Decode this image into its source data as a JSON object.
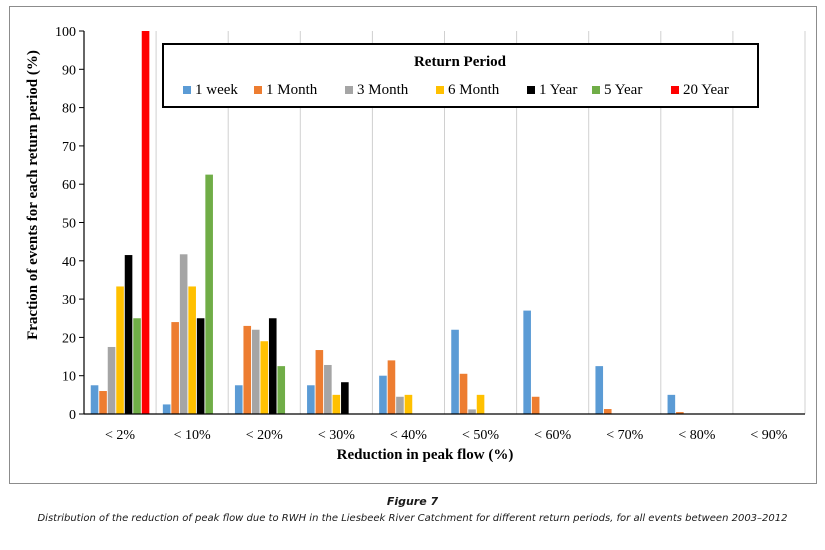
{
  "figure": {
    "label": "Figure 7",
    "caption": "Distribution of the reduction of peak flow due to RWH in the Liesbeek River Catchment for different return periods, for all events between 2003–2012"
  },
  "chart_data": {
    "type": "bar",
    "title": "",
    "xlabel": "Reduction in peak flow (%)",
    "ylabel": "Fraction of events for each return period (%)",
    "ylim": [
      0,
      100
    ],
    "yticks": [
      0,
      10,
      20,
      30,
      40,
      50,
      60,
      70,
      80,
      90,
      100
    ],
    "grid": "vertical",
    "legend_title": "Return Period",
    "legend_position": "top-right",
    "categories": [
      "< 2%",
      "< 10%",
      "< 20%",
      "< 30%",
      "< 40%",
      "< 50%",
      "< 60%",
      "< 70%",
      "< 80%",
      "< 90%"
    ],
    "series": [
      {
        "name": "1 week",
        "color": "#5b9bd5",
        "values": [
          7.5,
          2.5,
          7.5,
          7.5,
          10,
          22,
          27,
          12.5,
          5,
          0
        ]
      },
      {
        "name": "1 Month",
        "color": "#ed7d31",
        "values": [
          6,
          24,
          23,
          16.7,
          14,
          10.5,
          4.5,
          1.3,
          0.5,
          0
        ]
      },
      {
        "name": "3 Month",
        "color": "#a5a5a5",
        "values": [
          17.5,
          41.7,
          22,
          12.8,
          4.5,
          1.2,
          0,
          0,
          0,
          0
        ]
      },
      {
        "name": "6 Month",
        "color": "#ffc000",
        "values": [
          33.3,
          33.3,
          19,
          5,
          5,
          5,
          0,
          0,
          0,
          0
        ]
      },
      {
        "name": "1 Year",
        "color": "#000000",
        "values": [
          41.5,
          25,
          25,
          8.3,
          0,
          0,
          0,
          0,
          0,
          0
        ]
      },
      {
        "name": "5 Year",
        "color": "#70ad47",
        "values": [
          25,
          62.5,
          12.5,
          0,
          0,
          0,
          0,
          0,
          0,
          0
        ]
      },
      {
        "name": "20 Year",
        "color": "#ff0000",
        "values": [
          100,
          0,
          0,
          0,
          0,
          0,
          0,
          0,
          0,
          0
        ]
      }
    ]
  }
}
